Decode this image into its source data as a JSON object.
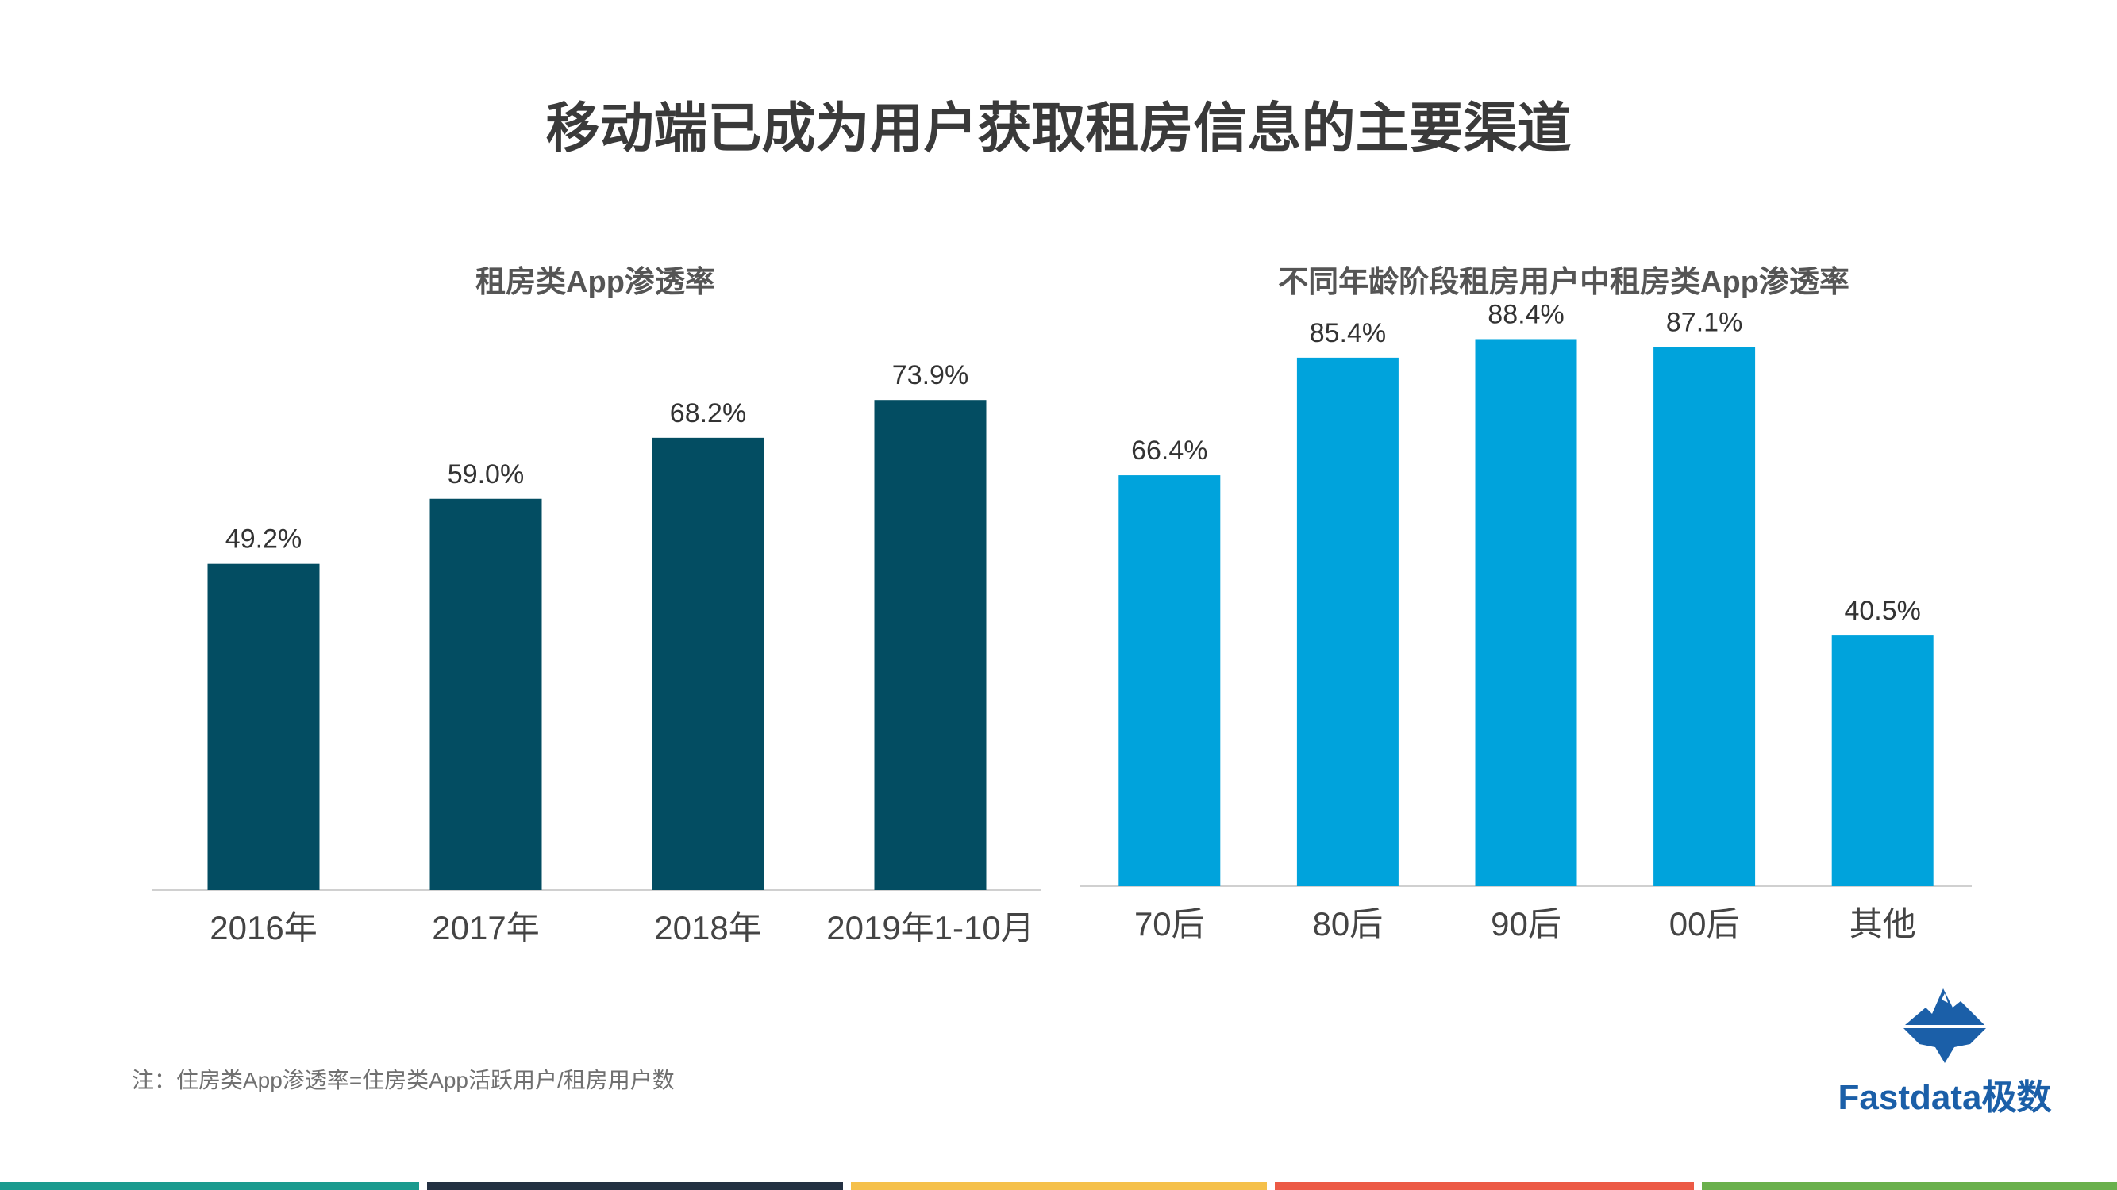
{
  "page": {
    "title": "移动端已成为用户获取租房信息的主要渠道",
    "footnote": "注：住房类App渗透率=住房类App活跃用户/租房用户数"
  },
  "logo": {
    "text": "Fastdata极数",
    "icon": "iceberg-icon",
    "color": "#1b5fa8"
  },
  "colors": {
    "left_bars": "#034d62",
    "right_bars": "#00a3dc",
    "stripes": [
      "#1a9a8e",
      "#233142",
      "#f5c04a",
      "#ec5a45",
      "#6ab04c"
    ]
  },
  "chart_data": [
    {
      "type": "bar",
      "title": "租房类App渗透率",
      "categories": [
        "2016年",
        "2017年",
        "2018年",
        "2019年1-10月"
      ],
      "values": [
        49.2,
        59.0,
        68.2,
        73.9
      ],
      "labels": [
        "49.2%",
        "59.0%",
        "68.2%",
        "73.9%"
      ],
      "unit": "%",
      "ylim": [
        0,
        100
      ],
      "grid": false,
      "legend": "none"
    },
    {
      "type": "bar",
      "title": "不同年龄阶段租房用户中租房类App渗透率",
      "categories": [
        "70后",
        "80后",
        "90后",
        "00后",
        "其他"
      ],
      "values": [
        66.4,
        85.4,
        88.4,
        87.1,
        40.5
      ],
      "labels": [
        "66.4%",
        "85.4%",
        "88.4%",
        "87.1%",
        "40.5%"
      ],
      "unit": "%",
      "ylim": [
        0,
        100
      ],
      "grid": false,
      "legend": "none"
    }
  ]
}
